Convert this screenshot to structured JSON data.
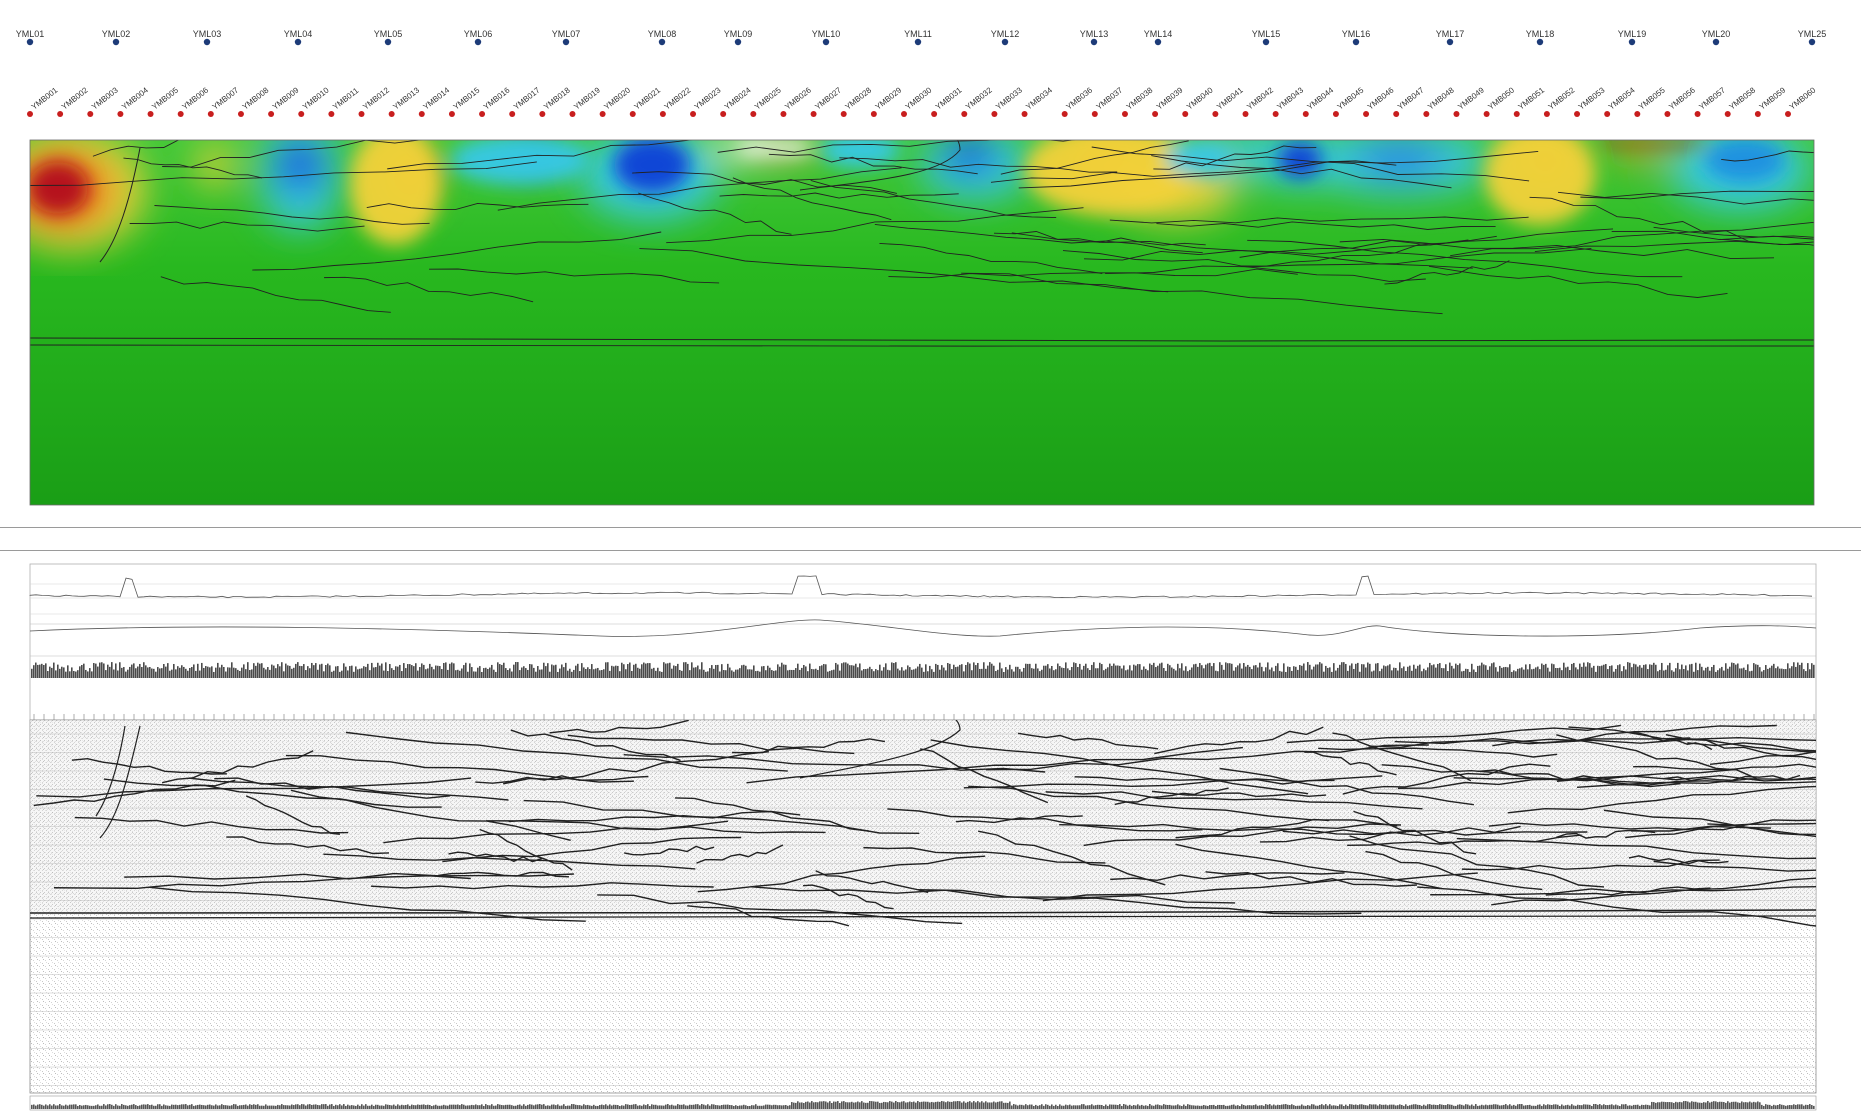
{
  "stations_ym": [
    "YML01",
    "YML02",
    "YML03",
    "YML04",
    "YML05",
    "YML06",
    "YML07",
    "YML08",
    "YML09",
    "YML10",
    "YML11",
    "YML12",
    "YML13",
    "YML14",
    "YML15",
    "YML16",
    "YML17",
    "YML18",
    "YML19",
    "YML20",
    "YML25"
  ],
  "stations_ymb": [
    "YMB001",
    "YMB002",
    "YMB003",
    "YMB004",
    "YMB005",
    "YMB006",
    "YMB007",
    "YMB008",
    "YMB009",
    "YMB010",
    "YMB011",
    "YMB012",
    "YMB013",
    "YMB014",
    "YMB015",
    "YMB016",
    "YMB017",
    "YMB018",
    "YMB019",
    "YMB020",
    "YMB021",
    "YMB022",
    "YMB023",
    "YMB024",
    "YMB025",
    "YMB026",
    "YMB027",
    "YMB028",
    "YMB029",
    "YMB030",
    "YMB031",
    "YMB032",
    "YMB033",
    "YMB034",
    "YMB036",
    "YMB037",
    "YMB038",
    "YMB039",
    "YMB040",
    "YMB041",
    "YMB042",
    "YMB043",
    "YMB044",
    "YMB045",
    "YMB046",
    "YMB047",
    "YMB048",
    "YMB049",
    "YMB050",
    "YMB051",
    "YMB052",
    "YMB053",
    "YMB054",
    "YMB055",
    "YMB056",
    "YMB057",
    "YMB058",
    "YMB059",
    "YMB060"
  ],
  "colors": {
    "background_green": "#1fb21c",
    "low_blue": "#0a3fd6",
    "mid_cyan": "#35c8e8",
    "high_yellow": "#f2d23a",
    "max_red": "#b3101a",
    "station_ym_dot": "#1d3b78",
    "station_ymb_dot": "#c81e1e",
    "interpretation_line": "#222222"
  },
  "icons": [
    "station-marker-icon"
  ]
}
